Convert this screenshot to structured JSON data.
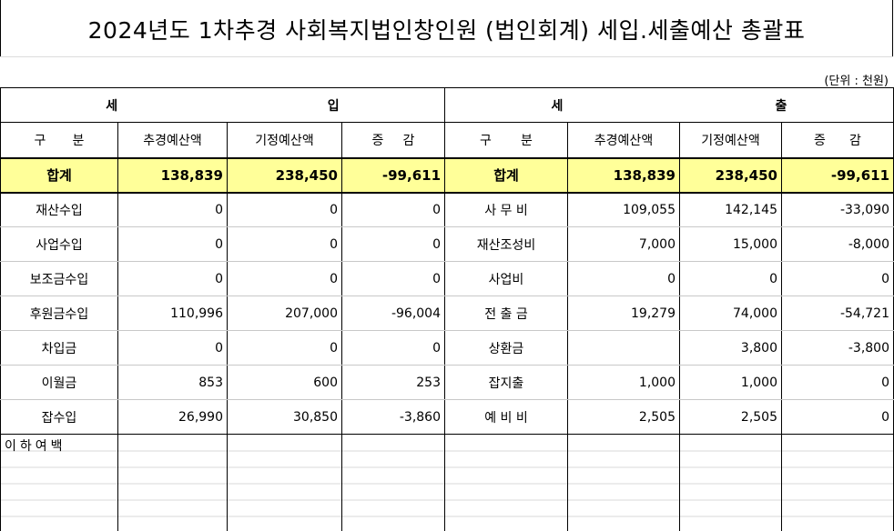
{
  "title": "2024년도 1차추경 사회복지법인창인원 (법인회계) 세입.세출예산 총괄표",
  "unit": "(단위 : 천원)",
  "header": {
    "revenue_left": "세",
    "revenue_right": "입",
    "expense_left": "세",
    "expense_right": "출",
    "col_category_a": "구",
    "col_category_b": "분",
    "col_budget": "추경예산액",
    "col_prev": "기정예산액",
    "col_diff_a": "증",
    "col_diff_b": "감"
  },
  "total": {
    "label": "합계",
    "rev_budget": "138,839",
    "rev_prev": "238,450",
    "rev_diff": "-99,611",
    "exp_budget": "138,839",
    "exp_prev": "238,450",
    "exp_diff": "-99,611"
  },
  "rows": [
    {
      "rev_label": "재산수입",
      "rev_budget": "0",
      "rev_prev": "0",
      "rev_diff": "0",
      "exp_label": "사 무 비",
      "exp_budget": "109,055",
      "exp_prev": "142,145",
      "exp_diff": "-33,090"
    },
    {
      "rev_label": "사업수입",
      "rev_budget": "0",
      "rev_prev": "0",
      "rev_diff": "0",
      "exp_label": "재산조성비",
      "exp_budget": "7,000",
      "exp_prev": "15,000",
      "exp_diff": "-8,000"
    },
    {
      "rev_label": "보조금수입",
      "rev_budget": "0",
      "rev_prev": "0",
      "rev_diff": "0",
      "exp_label": "사업비",
      "exp_budget": "0",
      "exp_prev": "0",
      "exp_diff": "0"
    },
    {
      "rev_label": "후원금수입",
      "rev_budget": "110,996",
      "rev_prev": "207,000",
      "rev_diff": "-96,004",
      "exp_label": "전 출 금",
      "exp_budget": "19,279",
      "exp_prev": "74,000",
      "exp_diff": "-54,721"
    },
    {
      "rev_label": "차입금",
      "rev_budget": "0",
      "rev_prev": "0",
      "rev_diff": "0",
      "exp_label": "상환금",
      "exp_budget": "",
      "exp_prev": "3,800",
      "exp_diff": "-3,800"
    },
    {
      "rev_label": "이월금",
      "rev_budget": "853",
      "rev_prev": "600",
      "rev_diff": "253",
      "exp_label": "잡지출",
      "exp_budget": "1,000",
      "exp_prev": "1,000",
      "exp_diff": "0"
    },
    {
      "rev_label": "잡수입",
      "rev_budget": "26,990",
      "rev_prev": "30,850",
      "rev_diff": "-3,860",
      "exp_label": "예 비 비",
      "exp_budget": "2,505",
      "exp_prev": "2,505",
      "exp_diff": "0"
    }
  ],
  "blank_note": "이하여백"
}
